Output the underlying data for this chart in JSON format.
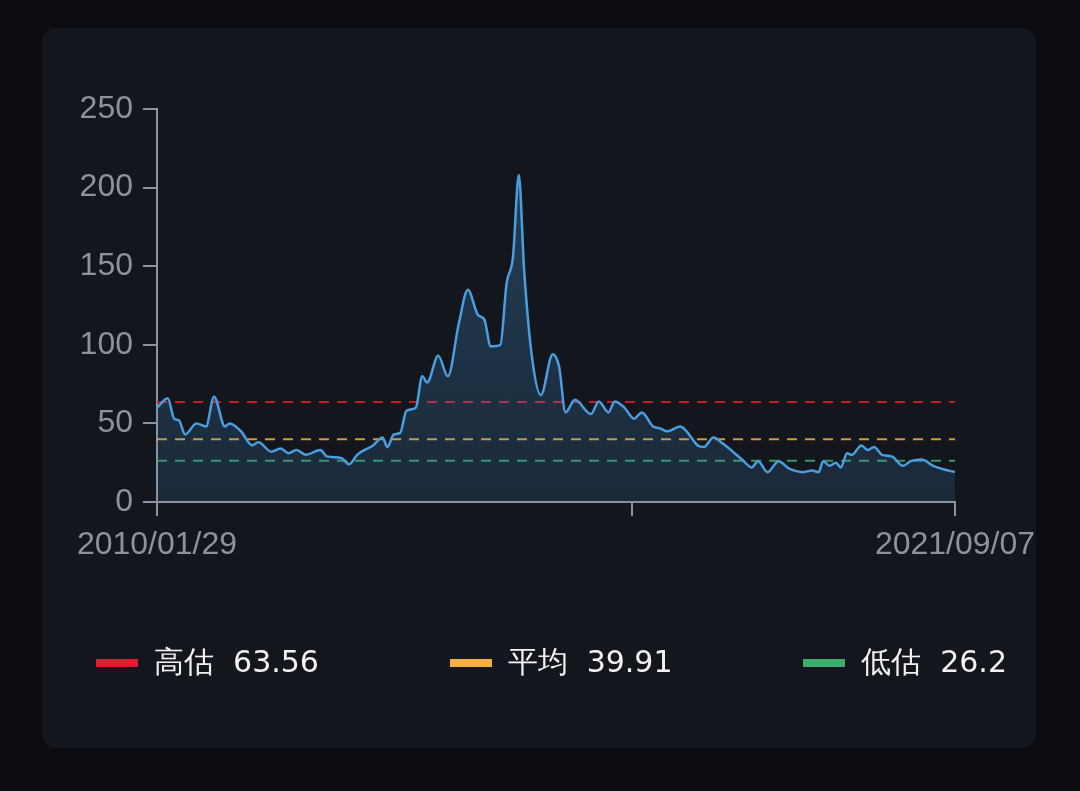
{
  "chart_data": {
    "type": "area",
    "x": [
      "2010-01-29",
      "2010-03-27",
      "2010-04-30",
      "2010-05-25",
      "2010-06-28",
      "2010-08-26",
      "2010-10-16",
      "2010-11-28",
      "2011-01-25",
      "2011-02-19",
      "2011-04-20",
      "2011-06-18",
      "2011-07-22",
      "2011-09-28",
      "2011-11-17",
      "2011-12-29",
      "2012-02-09",
      "2012-03-31",
      "2012-06-15",
      "2012-07-19",
      "2012-10-03",
      "2012-11-15",
      "2012-12-27",
      "2013-03-22",
      "2013-05-11",
      "2013-06-06",
      "2013-07-10",
      "2013-08-13",
      "2013-09-15",
      "2013-11-04",
      "2013-12-08",
      "2014-01-03",
      "2014-03-03",
      "2014-04-23",
      "2014-06-21",
      "2014-08-07",
      "2014-09-30",
      "2014-11-03",
      "2014-12-07",
      "2015-01-27",
      "2015-03-01",
      "2015-04-04",
      "2015-05-05",
      "2015-06-02",
      "2015-07-14",
      "2015-08-30",
      "2015-11-01",
      "2015-12-05",
      "2016-01-08",
      "2016-02-27",
      "2016-05-22",
      "2016-07-03",
      "2016-08-23",
      "2016-09-26",
      "2016-11-16",
      "2017-01-06",
      "2017-02-17",
      "2017-04-17",
      "2017-05-21",
      "2017-07-02",
      "2017-09-08",
      "2017-10-12",
      "2017-12-10",
      "2018-01-12",
      "2018-03-04",
      "2018-04-24",
      "2018-08-03",
      "2018-09-23",
      "2018-10-27",
      "2018-12-16",
      "2019-02-13",
      "2019-04-13",
      "2019-06-20",
      "2019-08-10",
      "2019-09-13",
      "2019-10-08",
      "2019-11-11",
      "2019-12-14",
      "2020-01-09",
      "2020-02-12",
      "2020-03-08",
      "2020-04-28",
      "2020-06-01",
      "2020-07-04",
      "2020-08-16",
      "2020-10-06",
      "2020-12-04",
      "2021-01-15",
      "2021-03-15",
      "2021-05-14",
      "2021-07-03",
      "2021-09-07"
    ],
    "series": [
      {
        "color": "#4a9ee0",
        "values": [
          60,
          66,
          53,
          52,
          43,
          50,
          48,
          67,
          48,
          50,
          45,
          36,
          38,
          32,
          34,
          31,
          33,
          30,
          33,
          29,
          28,
          24,
          30,
          36,
          41,
          35,
          43,
          44,
          58,
          60,
          80,
          76,
          93,
          80,
          114,
          135,
          119,
          116,
          99,
          100,
          139,
          156,
          208,
          148,
          92,
          68,
          94,
          86,
          57,
          65,
          56,
          64,
          57,
          64,
          60,
          53,
          57,
          48,
          47,
          45,
          48,
          45,
          36,
          35,
          41,
          37,
          27,
          22,
          26,
          19,
          26,
          21,
          19,
          20,
          19,
          26,
          23,
          25,
          22,
          31,
          30,
          36,
          33,
          35,
          30,
          29,
          23,
          26,
          27,
          23,
          21,
          19
        ]
      }
    ],
    "xlim": [
      "2010-01-29",
      "2021-09-07"
    ],
    "xticks": [
      {
        "value": "2010-01-29",
        "label": "2010/01/29"
      },
      {
        "value": "2016-12-28",
        "label": null
      },
      {
        "value": "2021-09-07",
        "label": "2021/09/07"
      }
    ],
    "ylim": [
      0,
      250
    ],
    "yticks": [
      0,
      50,
      100,
      150,
      200,
      250
    ],
    "ref_lines": [
      {
        "axis": "y",
        "value": 63.56,
        "label": "高估  63.56",
        "color": "#e8192c",
        "line_style": "dashed"
      },
      {
        "axis": "y",
        "value": 39.91,
        "label": "平均  39.91",
        "color": "#f5b042",
        "line_style": "dashed"
      },
      {
        "axis": "y",
        "value": 26.2,
        "label": "低估  26.2",
        "color": "#3aae6a",
        "line_style": "dashed"
      }
    ],
    "legend": "bottom"
  }
}
